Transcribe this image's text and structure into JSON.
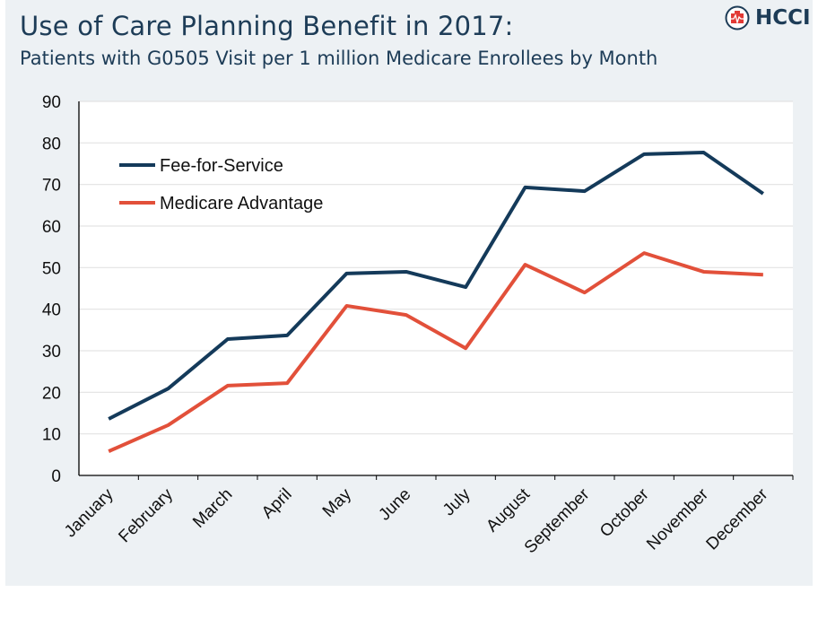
{
  "header": {
    "title": "Use of Care Planning Benefit in 2017:",
    "subtitle": "Patients with G0505 Visit per 1 million Medicare Enrollees by Month",
    "logo_text": "HCCI"
  },
  "chart_data": {
    "type": "line",
    "title": "Use of Care Planning Benefit in 2017:",
    "subtitle": "Patients with G0505 Visit per 1 million Medicare Enrollees by Month",
    "categories": [
      "January",
      "February",
      "March",
      "April",
      "May",
      "June",
      "July",
      "August",
      "September",
      "October",
      "November",
      "December"
    ],
    "ylim": [
      0,
      90
    ],
    "yticks": [
      0,
      10,
      20,
      30,
      40,
      50,
      60,
      70,
      80,
      90
    ],
    "grid": true,
    "legend": "top-left",
    "series": [
      {
        "name": "Fee-for-Service",
        "color": "#143a5a",
        "values": [
          13.6,
          20.9,
          32.8,
          33.7,
          48.6,
          49.0,
          45.3,
          69.3,
          68.4,
          77.3,
          77.7,
          67.8
        ]
      },
      {
        "name": "Medicare Advantage",
        "color": "#e2503a",
        "values": [
          5.8,
          12.1,
          21.6,
          22.2,
          40.8,
          38.6,
          30.6,
          50.7,
          44.0,
          53.5,
          49.0,
          48.3
        ]
      }
    ]
  }
}
